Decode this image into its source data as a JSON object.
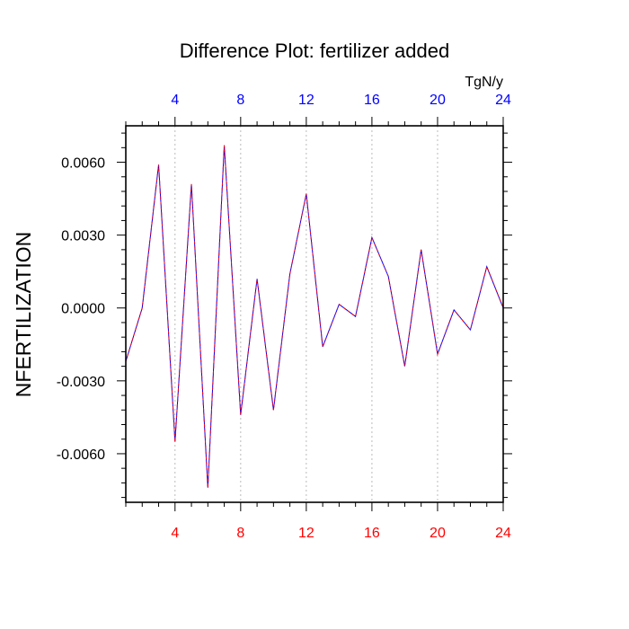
{
  "chart_data": {
    "type": "line",
    "title": "Difference Plot: fertilizer added",
    "ylabel": "NFERTILIZATION",
    "top_axis_unit": "TgN/y",
    "x": [
      1,
      2,
      3,
      4,
      5,
      6,
      7,
      8,
      9,
      10,
      11,
      12,
      13,
      14,
      15,
      16,
      17,
      18,
      19,
      20,
      21,
      22,
      23,
      24
    ],
    "series": [
      {
        "values": [
          -0.0022,
          0.0,
          0.0059,
          -0.0055,
          0.0051,
          -0.0074,
          0.0067,
          -0.0044,
          0.0012,
          -0.0042,
          0.0014,
          0.0047,
          -0.0016,
          0.00015,
          -0.00035,
          0.0029,
          0.0013,
          -0.0024,
          0.0024,
          -0.0019,
          -8e-05,
          -0.0009,
          0.0017,
          0.0
        ],
        "color_primary": "#0000ff",
        "color_secondary": "#ff0000"
      }
    ],
    "xlim": [
      1,
      24
    ],
    "ylim": [
      -0.008,
      0.0075
    ],
    "x_ticks": [
      4,
      8,
      12,
      16,
      20,
      24
    ],
    "x_tick_labels": [
      "4",
      "8",
      "12",
      "16",
      "20",
      "24"
    ],
    "y_ticks": [
      0.006,
      0.003,
      0.0,
      -0.003,
      -0.006
    ],
    "y_tick_labels": [
      "0.0060",
      "0.0030",
      "0.0000",
      "-0.0030",
      "-0.0060"
    ],
    "bottom_tick_color": "#ff0000",
    "top_tick_color": "#0000ff",
    "grid": "vertical-dashed",
    "legend": "none"
  }
}
